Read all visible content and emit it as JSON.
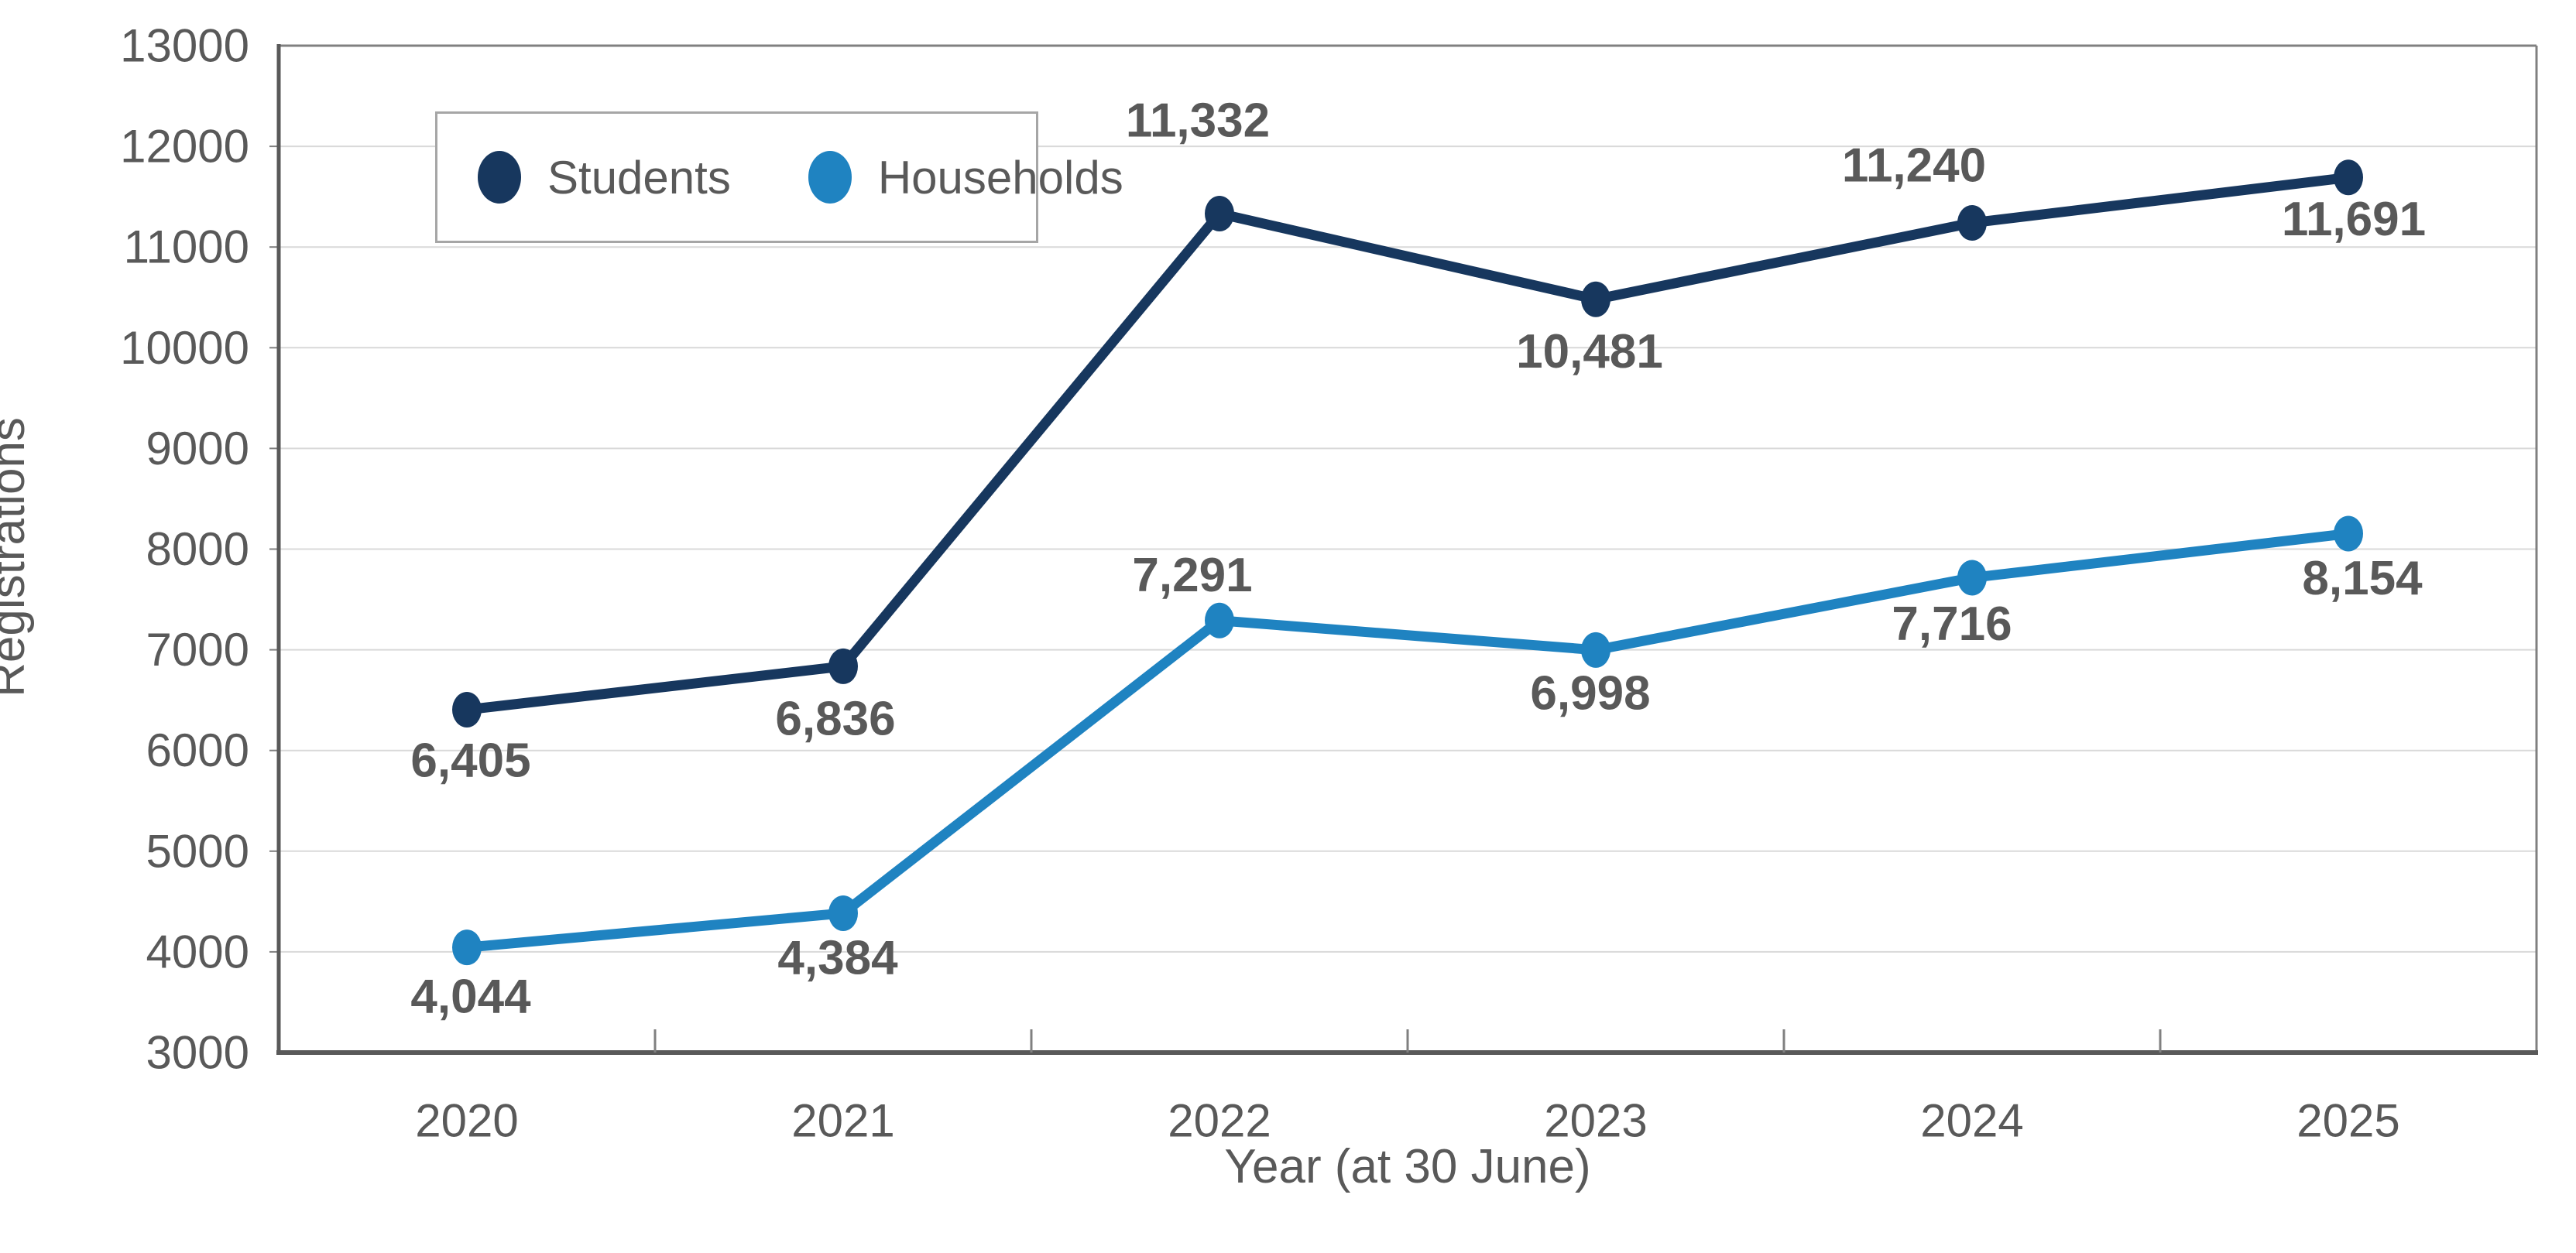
{
  "chart_data": {
    "type": "line",
    "title": "",
    "ylabel": "Registrations",
    "xlabel": "Year (at 30 June)",
    "categories": [
      "2020",
      "2021",
      "2022",
      "2023",
      "2024",
      "2025"
    ],
    "yticks": [
      "13000",
      "12000",
      "11000",
      "10000",
      "9000",
      "8000",
      "7000",
      "6000",
      "5000",
      "4000",
      "3000"
    ],
    "ylim": [
      3000,
      13000
    ],
    "ytick_step": 1000,
    "grid": "horizontal",
    "legend_position": "top-left-inside",
    "series": [
      {
        "name": "Students",
        "color": "#17375E",
        "values": [
          6405,
          6836,
          11332,
          10481,
          11240,
          11691
        ],
        "labels": [
          "6,405",
          "6,836",
          "11,332",
          "10,481",
          "11,240",
          "11,691"
        ],
        "label_dx": [
          5,
          -10,
          -28,
          -8,
          -75,
          7
        ],
        "label_dy": [
          66,
          68,
          -120,
          68,
          -74,
          54
        ]
      },
      {
        "name": "Households",
        "color": "#1F83C1",
        "values": [
          4044,
          4384,
          7291,
          6998,
          7716,
          8154
        ],
        "labels": [
          "4,044",
          "4,384",
          "7,291",
          "6,998",
          "7,716",
          "8,154"
        ],
        "label_dx": [
          5,
          -7,
          -35,
          -7,
          -26,
          18
        ],
        "label_dy": [
          64,
          58,
          -58,
          56,
          60,
          58
        ]
      }
    ],
    "colors": {
      "grid": "#D9D9D9",
      "frame": "#808080",
      "axis": "#595959",
      "text": "#595959",
      "background": "#FFFFFF"
    }
  }
}
